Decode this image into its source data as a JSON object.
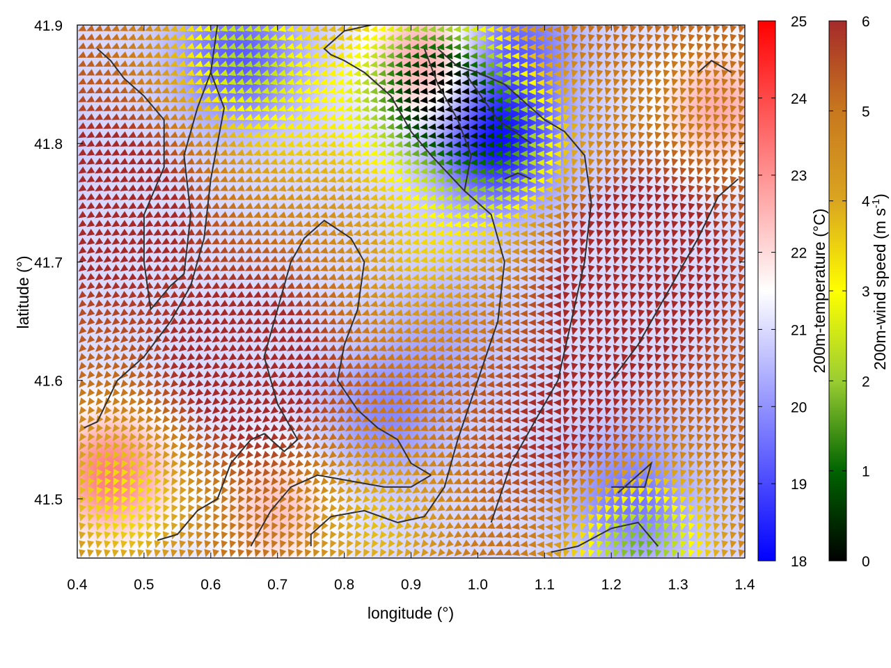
{
  "chart_data": {
    "type": "heatmap",
    "title": "",
    "xlabel": "longitude (°)",
    "ylabel": "latitude (°)",
    "xlim": [
      0.4,
      1.4
    ],
    "ylim": [
      41.45,
      41.9
    ],
    "xticks": [
      "0.4",
      "0.5",
      "0.6",
      "0.7",
      "0.8",
      "0.9",
      "1.0",
      "1.1",
      "1.2",
      "1.3",
      "1.4"
    ],
    "yticks": [
      "41.5",
      "41.6",
      "41.7",
      "41.8",
      "41.9"
    ],
    "xtick_values": [
      0.4,
      0.5,
      0.6,
      0.7,
      0.8,
      0.9,
      1.0,
      1.1,
      1.2,
      1.3,
      1.4
    ],
    "ytick_values": [
      41.5,
      41.6,
      41.7,
      41.8,
      41.9
    ],
    "grid": false,
    "temperature_colorbar": {
      "label": "200m-temperature (°C)",
      "range": [
        18,
        25
      ],
      "ticks": [
        "18",
        "19",
        "20",
        "21",
        "22",
        "23",
        "24",
        "25"
      ],
      "tick_values": [
        18,
        19,
        20,
        21,
        22,
        23,
        24,
        25
      ],
      "colors": [
        "#0000ff",
        "#ffffff",
        "#ff0000"
      ]
    },
    "wind_colorbar": {
      "label": "200m-wind speed (m s",
      "label_sup": "-1",
      "label_close": ")",
      "range": [
        0,
        6
      ],
      "ticks": [
        "0",
        "1",
        "2",
        "3",
        "4",
        "5",
        "6"
      ],
      "tick_values": [
        0,
        1,
        2,
        3,
        4,
        5,
        6
      ],
      "colors": [
        "#000000",
        "#006400",
        "#9acd32",
        "#ffff00",
        "#daa520",
        "#c8781e",
        "#a52a2a"
      ]
    },
    "temperature_features": [
      {
        "lon": 1.03,
        "lat": 41.8,
        "temp": 18.3
      },
      {
        "lon": 0.64,
        "lat": 41.87,
        "temp": 19.2
      },
      {
        "lon": 1.05,
        "lat": 41.88,
        "temp": 19.3
      },
      {
        "lon": 0.86,
        "lat": 41.57,
        "temp": 19.9
      },
      {
        "lon": 1.23,
        "lat": 41.5,
        "temp": 19.6
      },
      {
        "lon": 0.45,
        "lat": 41.52,
        "temp": 23.3
      },
      {
        "lon": 0.93,
        "lat": 41.87,
        "temp": 22.9
      },
      {
        "lon": 1.36,
        "lat": 41.83,
        "temp": 22.6
      },
      {
        "lon": 0.7,
        "lat": 41.49,
        "temp": 22.3
      },
      {
        "lon": 0.95,
        "lat": 41.64,
        "temp": 20.4
      },
      {
        "lon": 0.3,
        "lat": 41.8,
        "temp": 20.3
      }
    ],
    "wind_features": [
      {
        "lon": 0.93,
        "lat": 41.85,
        "speed": 0.6
      },
      {
        "lon": 1.04,
        "lat": 41.79,
        "speed": 2.3
      },
      {
        "lon": 1.24,
        "lat": 41.46,
        "speed": 1.6
      },
      {
        "lon": 0.64,
        "lat": 41.88,
        "speed": 2.4
      },
      {
        "lon": 0.47,
        "lat": 41.5,
        "speed": 3.2
      },
      {
        "lon": 0.91,
        "lat": 41.7,
        "speed": 3.9
      },
      {
        "lon": 0.73,
        "lat": 41.8,
        "speed": 4.1
      },
      {
        "lon": 1.3,
        "lat": 41.82,
        "speed": 4.8
      },
      {
        "lon": 0.85,
        "lat": 41.48,
        "speed": 3.7
      },
      {
        "lon": 0.65,
        "lat": 41.61,
        "speed": 6.9
      },
      {
        "lon": 1.23,
        "lat": 41.7,
        "speed": 7.6
      },
      {
        "lon": 0.45,
        "lat": 41.75,
        "speed": 6.8
      },
      {
        "lon": 1.15,
        "lat": 41.55,
        "speed": 6.4
      }
    ],
    "wind_vortex": {
      "lon": 0.93,
      "lat": 41.76
    },
    "terrain_contours": [
      [
        [
          0.41,
          41.56
        ],
        [
          0.43,
          41.565
        ],
        [
          0.46,
          41.6
        ],
        [
          0.5,
          41.62
        ],
        [
          0.54,
          41.65
        ],
        [
          0.57,
          41.68
        ],
        [
          0.59,
          41.72
        ],
        [
          0.6,
          41.77
        ],
        [
          0.61,
          41.8
        ],
        [
          0.62,
          41.83
        ],
        [
          0.6,
          41.86
        ],
        [
          0.61,
          41.9
        ]
      ],
      [
        [
          0.43,
          41.88
        ],
        [
          0.45,
          41.87
        ],
        [
          0.47,
          41.855
        ],
        [
          0.5,
          41.84
        ],
        [
          0.53,
          41.82
        ],
        [
          0.53,
          41.78
        ],
        [
          0.5,
          41.74
        ],
        [
          0.5,
          41.7
        ],
        [
          0.51,
          41.66
        ],
        [
          0.54,
          41.68
        ],
        [
          0.56,
          41.69
        ],
        [
          0.57,
          41.74
        ],
        [
          0.56,
          41.79
        ],
        [
          0.58,
          41.83
        ],
        [
          0.6,
          41.86
        ]
      ],
      [
        [
          0.52,
          41.465
        ],
        [
          0.55,
          41.47
        ],
        [
          0.58,
          41.49
        ],
        [
          0.61,
          41.5
        ],
        [
          0.63,
          41.53
        ],
        [
          0.66,
          41.55
        ],
        [
          0.68,
          41.555
        ],
        [
          0.71,
          41.54
        ],
        [
          0.73,
          41.55
        ],
        [
          0.7,
          41.58
        ],
        [
          0.68,
          41.62
        ],
        [
          0.7,
          41.66
        ],
        [
          0.72,
          41.7
        ],
        [
          0.74,
          41.72
        ],
        [
          0.77,
          41.735
        ],
        [
          0.81,
          41.72
        ],
        [
          0.83,
          41.7
        ],
        [
          0.82,
          41.66
        ],
        [
          0.8,
          41.63
        ],
        [
          0.79,
          41.6
        ],
        [
          0.82,
          41.575
        ],
        [
          0.85,
          41.56
        ],
        [
          0.88,
          41.55
        ],
        [
          0.9,
          41.53
        ],
        [
          0.93,
          41.52
        ]
      ],
      [
        [
          0.66,
          41.46
        ],
        [
          0.69,
          41.49
        ],
        [
          0.72,
          41.51
        ],
        [
          0.76,
          41.52
        ],
        [
          0.81,
          41.515
        ],
        [
          0.86,
          41.51
        ],
        [
          0.9,
          41.51
        ],
        [
          0.93,
          41.52
        ]
      ],
      [
        [
          0.75,
          41.46
        ],
        [
          0.75,
          41.47
        ],
        [
          0.78,
          41.485
        ],
        [
          0.83,
          41.49
        ],
        [
          0.88,
          41.48
        ],
        [
          0.92,
          41.485
        ],
        [
          0.95,
          41.51
        ],
        [
          0.97,
          41.55
        ],
        [
          1.0,
          41.6
        ],
        [
          1.03,
          41.65
        ],
        [
          1.04,
          41.7
        ],
        [
          1.02,
          41.74
        ],
        [
          0.98,
          41.76
        ],
        [
          0.93,
          41.79
        ],
        [
          0.9,
          41.81
        ],
        [
          0.87,
          41.84
        ],
        [
          0.83,
          41.86
        ],
        [
          0.8,
          41.87
        ],
        [
          0.78,
          41.875
        ],
        [
          0.77,
          41.88
        ],
        [
          0.8,
          41.895
        ],
        [
          0.84,
          41.9
        ]
      ],
      [
        [
          1.11,
          41.455
        ],
        [
          1.15,
          41.46
        ],
        [
          1.2,
          41.475
        ],
        [
          1.24,
          41.48
        ],
        [
          1.27,
          41.46
        ]
      ],
      [
        [
          1.2,
          41.51
        ],
        [
          1.25,
          41.51
        ],
        [
          1.26,
          41.53
        ],
        [
          1.24,
          41.52
        ],
        [
          1.21,
          41.505
        ]
      ],
      [
        [
          1.02,
          41.48
        ],
        [
          1.05,
          41.53
        ],
        [
          1.09,
          41.57
        ],
        [
          1.12,
          41.6
        ],
        [
          1.14,
          41.65
        ],
        [
          1.16,
          41.7
        ],
        [
          1.17,
          41.75
        ],
        [
          1.16,
          41.79
        ],
        [
          1.13,
          41.81
        ],
        [
          1.1,
          41.82
        ],
        [
          1.07,
          41.835
        ],
        [
          1.04,
          41.85
        ],
        [
          1.0,
          41.86
        ],
        [
          0.97,
          41.865
        ],
        [
          0.94,
          41.88
        ]
      ],
      [
        [
          1.2,
          41.6
        ],
        [
          1.24,
          41.63
        ],
        [
          1.27,
          41.66
        ],
        [
          1.3,
          41.69
        ],
        [
          1.33,
          41.72
        ],
        [
          1.36,
          41.755
        ],
        [
          1.39,
          41.77
        ]
      ],
      [
        [
          1.33,
          41.86
        ],
        [
          1.35,
          41.87
        ],
        [
          1.38,
          41.86
        ]
      ],
      [
        [
          0.98,
          41.86
        ],
        [
          1.03,
          41.82
        ],
        [
          1.08,
          41.8
        ]
      ],
      [
        [
          1.04,
          41.77
        ],
        [
          1.06,
          41.775
        ],
        [
          1.08,
          41.77
        ]
      ],
      [
        [
          0.92,
          41.88
        ],
        [
          0.94,
          41.85
        ],
        [
          0.97,
          41.82
        ],
        [
          0.99,
          41.79
        ],
        [
          0.98,
          41.76
        ]
      ]
    ]
  }
}
